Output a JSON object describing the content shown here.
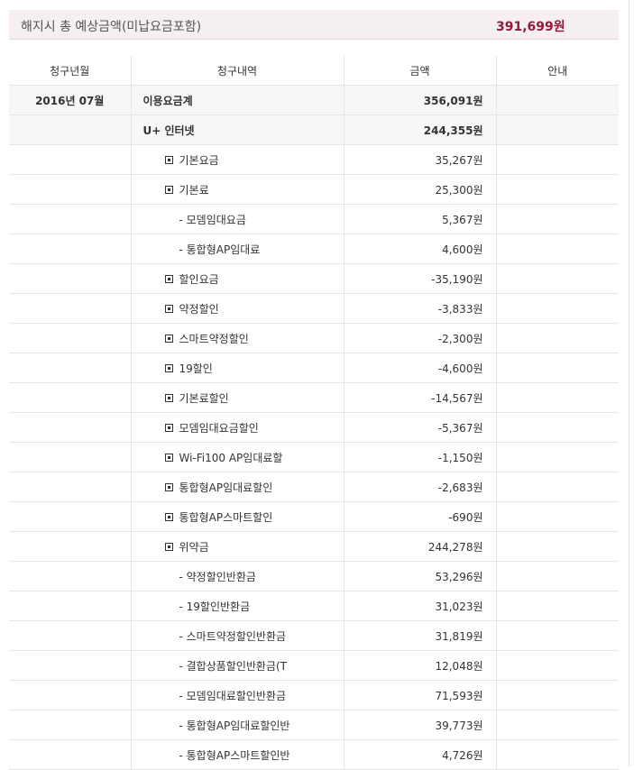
{
  "banner": {
    "title": "해지시 총 예상금액(미납요금포함)",
    "amount": "391,699원"
  },
  "table": {
    "headers": [
      "청구년월",
      "청구내역",
      "금액",
      "안내"
    ],
    "rows": [
      {
        "month": "2016년 07월",
        "item": "이용요금계",
        "amount": "356,091원",
        "level": 0
      },
      {
        "month": "",
        "item": "U+ 인터넷",
        "amount": "244,355원",
        "level": 0
      },
      {
        "item": "기본요금",
        "amount": "35,267원",
        "level": 1
      },
      {
        "item": "기본료",
        "amount": "25,300원",
        "level": 1
      },
      {
        "item": "- 모뎀임대요금",
        "amount": "5,367원",
        "level": 2
      },
      {
        "item": "- 통합형AP임대료",
        "amount": "4,600원",
        "level": 2
      },
      {
        "item": "할인요금",
        "amount": "-35,190원",
        "level": 1
      },
      {
        "item": "약정할인",
        "amount": "-3,833원",
        "level": 1
      },
      {
        "item": "스마트약정할인",
        "amount": "-2,300원",
        "level": 1
      },
      {
        "item": "19할인",
        "amount": "-4,600원",
        "level": 1
      },
      {
        "item": "기본료할인",
        "amount": "-14,567원",
        "level": 1
      },
      {
        "item": "모뎀임대요금할인",
        "amount": "-5,367원",
        "level": 1
      },
      {
        "item": "Wi-Fi100 AP임대료할",
        "amount": "-1,150원",
        "level": 1
      },
      {
        "item": "통합형AP임대료할인",
        "amount": "-2,683원",
        "level": 1
      },
      {
        "item": "통합형AP스마트할인",
        "amount": "-690원",
        "level": 1
      },
      {
        "item": "위약금",
        "amount": "244,278원",
        "level": 1
      },
      {
        "item": "- 약정할인반환금",
        "amount": "53,296원",
        "level": 2
      },
      {
        "item": "- 19할인반환금",
        "amount": "31,023원",
        "level": 2
      },
      {
        "item": "- 스마트약정할인반환금",
        "amount": "31,819원",
        "level": 2
      },
      {
        "item": "- 결합상품할인반환금(T",
        "amount": "12,048원",
        "level": 2
      },
      {
        "item": "- 모뎀임대료할인반환금",
        "amount": "71,593원",
        "level": 2
      },
      {
        "item": "- 통합형AP임대료할인반",
        "amount": "39,773원",
        "level": 2
      },
      {
        "item": "- 통합형AP스마트할인반",
        "amount": "4,726원",
        "level": 2
      }
    ]
  }
}
